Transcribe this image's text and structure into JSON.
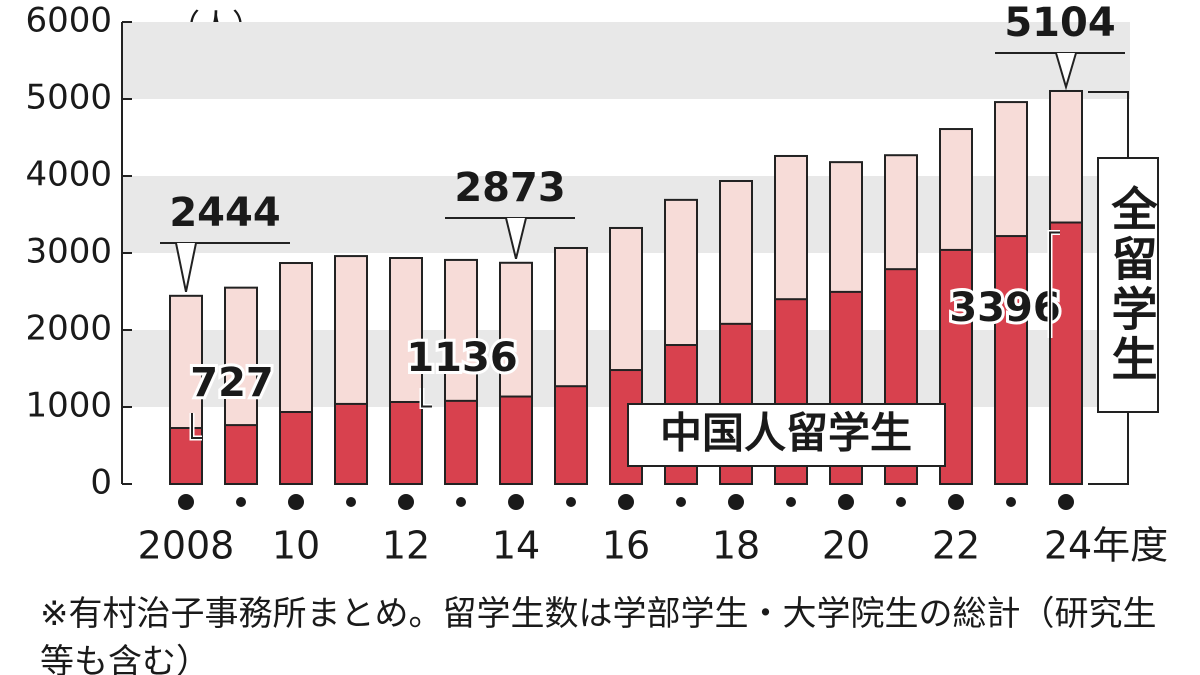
{
  "chart_data": {
    "type": "bar",
    "unit_label": "（人）",
    "categories": [
      "2008",
      null,
      "10",
      null,
      "12",
      null,
      "14",
      null,
      "16",
      null,
      "18",
      null,
      "20",
      null,
      "22",
      null,
      "24年度"
    ],
    "series": [
      {
        "name": "全留学生",
        "color": "#f7dcd8",
        "values": [
          2444,
          2550,
          2870,
          2960,
          2935,
          2910,
          2873,
          3065,
          3325,
          3690,
          3935,
          4260,
          4180,
          4270,
          4610,
          4960,
          5104
        ],
        "labeled_indices": [
          0,
          6,
          16
        ]
      },
      {
        "name": "中国人留学生",
        "color": "#d8414e",
        "values": [
          727,
          765,
          935,
          1040,
          1065,
          1080,
          1136,
          1270,
          1480,
          1805,
          2080,
          2400,
          2495,
          2790,
          3040,
          3220,
          3396
        ],
        "labeled_indices": [
          0,
          6,
          16
        ]
      }
    ],
    "ylim": [
      0,
      6000
    ],
    "yticks": [
      0,
      1000,
      2000,
      3000,
      4000,
      5000,
      6000
    ],
    "grid": true,
    "note": "※有村治子事務所まとめ。留学生数は学部学生・大学院生の総計（研究生等も含む）"
  }
}
